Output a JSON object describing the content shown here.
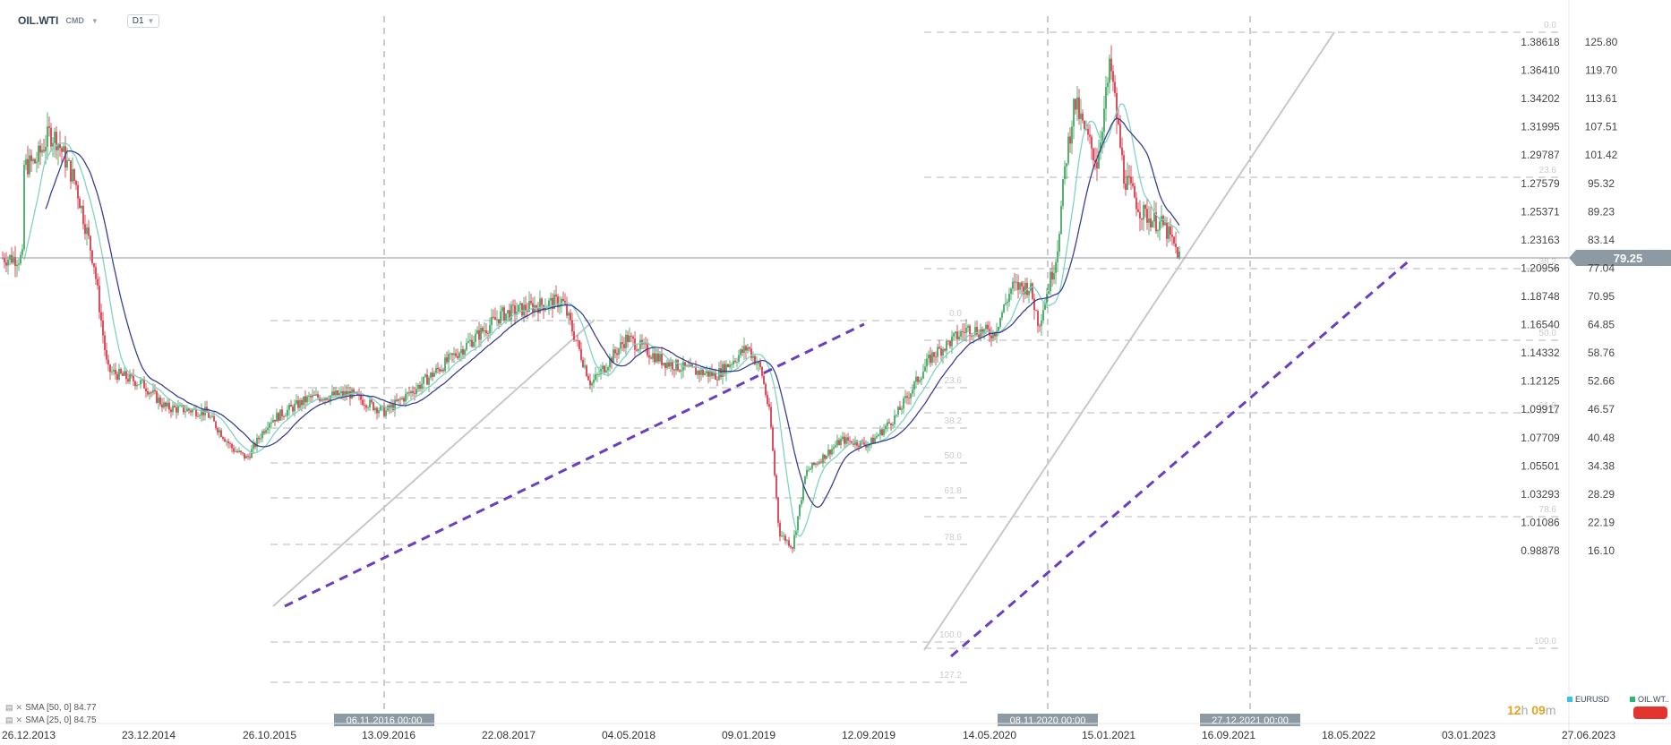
{
  "header": {
    "symbol": "OIL.WTI",
    "market": "CMD",
    "timeframe": "D1"
  },
  "legend": [
    {
      "label": "SMA [50, 0] 84.77"
    },
    {
      "label": "SMA [25, 0] 84.75"
    }
  ],
  "countdown": {
    "hours": "12",
    "hours_unit": "h",
    "minutes": "09",
    "minutes_unit": "m"
  },
  "instruments": [
    {
      "label": "EURUSD",
      "color": "#3cc0f0"
    },
    {
      "label": "OIL.WT..",
      "color": "#2bb673"
    }
  ],
  "colors": {
    "up": "#2e9e4f",
    "down": "#d1273a",
    "sma_fast": "#7fd4c0",
    "sma_slow": "#3b3f8f",
    "trend": "#6a3fbf",
    "channel": "#c8c8c8",
    "fib": "#cfcfcf",
    "current": "#8a9aa3",
    "tag_bg": "#8e9aa3"
  },
  "chart_data": {
    "type": "candlestick",
    "instrument": "OIL.WTI",
    "timeframe": "D1",
    "current_price": "79.25",
    "x_axis_labels": [
      "26.12.2013",
      "23.12.2014",
      "26.10.2015",
      "13.09.2016",
      "22.08.2017",
      "04.05.2018",
      "09.01.2019",
      "12.09.2019",
      "14.05.2020",
      "15.01.2021",
      "16.09.2021",
      "18.05.2022",
      "03.01.2023",
      "27.06.2023"
    ],
    "price_axis": [
      "125.80",
      "119.70",
      "113.61",
      "107.51",
      "101.42",
      "95.32",
      "89.23",
      "83.14",
      "77.04",
      "70.95",
      "64.85",
      "58.76",
      "52.66",
      "46.57",
      "40.48",
      "34.38",
      "28.29",
      "22.19",
      "16.10"
    ],
    "eurusd_axis": [
      "1.38618",
      "1.36410",
      "1.34202",
      "1.31995",
      "1.29787",
      "1.27579",
      "1.25371",
      "1.23163",
      "1.20956",
      "1.18748",
      "1.16540",
      "1.14332",
      "1.12125",
      "1.09917",
      "1.07709",
      "1.05501",
      "1.03293",
      "1.01086",
      "0.98878"
    ],
    "vertical_marker_labels": [
      "06.11.2016 00:00",
      "08.11.2020 00:00",
      "27.12.2021 00:00"
    ],
    "fib_sets": [
      {
        "labels": [
          "0.0",
          "23.6",
          "38.2",
          "50.0",
          "61.8",
          "78.6",
          "100.0",
          "127.2"
        ]
      },
      {
        "labels": [
          "0.0",
          "23.6",
          "38.2",
          "50.0",
          "61.8",
          "78.6",
          "100.0"
        ]
      }
    ],
    "series": [
      {
        "name": "SMA [50, 0]",
        "last": 84.77
      },
      {
        "name": "SMA [25, 0]",
        "last": 84.75
      }
    ],
    "price_path": [
      [
        26,
        99
      ],
      [
        40,
        100
      ],
      [
        55,
        106
      ],
      [
        63,
        105
      ],
      [
        85,
        95
      ],
      [
        105,
        78
      ],
      [
        120,
        55
      ],
      [
        160,
        52
      ],
      [
        185,
        47
      ],
      [
        230,
        46
      ],
      [
        260,
        38
      ],
      [
        276,
        36
      ],
      [
        300,
        44
      ],
      [
        345,
        49
      ],
      [
        390,
        50
      ],
      [
        430,
        46
      ],
      [
        470,
        52
      ],
      [
        500,
        57
      ],
      [
        560,
        67
      ],
      [
        600,
        69
      ],
      [
        628,
        70
      ],
      [
        660,
        52
      ],
      [
        700,
        62
      ],
      [
        740,
        57
      ],
      [
        770,
        55
      ],
      [
        800,
        54
      ],
      [
        835,
        60
      ],
      [
        850,
        55
      ],
      [
        860,
        45
      ],
      [
        870,
        20
      ],
      [
        885,
        17
      ],
      [
        900,
        33
      ],
      [
        940,
        40
      ],
      [
        970,
        39
      ],
      [
        1000,
        45
      ],
      [
        1040,
        58
      ],
      [
        1080,
        64
      ],
      [
        1110,
        63
      ],
      [
        1130,
        73
      ],
      [
        1150,
        73
      ],
      [
        1160,
        65
      ],
      [
        1180,
        80
      ],
      [
        1190,
        100
      ],
      [
        1200,
        113
      ],
      [
        1210,
        107
      ],
      [
        1225,
        100
      ],
      [
        1240,
        121
      ],
      [
        1255,
        97
      ],
      [
        1275,
        89
      ],
      [
        1300,
        86
      ],
      [
        1318,
        79.25
      ]
    ]
  }
}
